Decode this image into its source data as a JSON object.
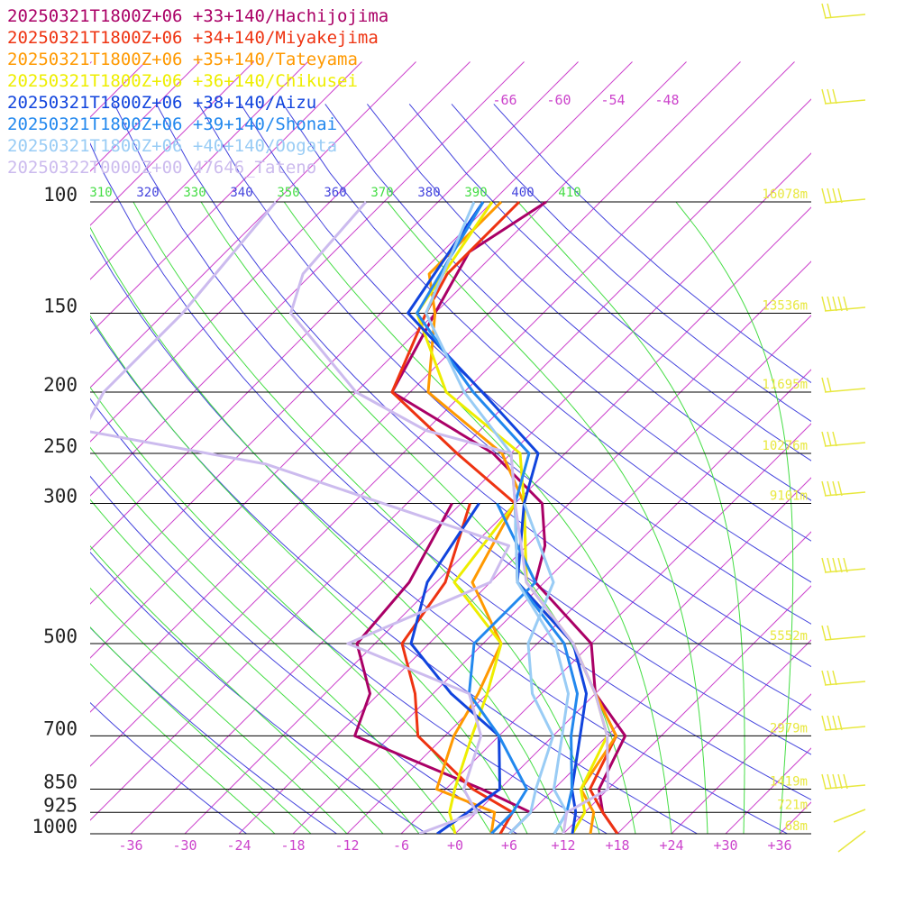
{
  "chart_data": {
    "type": "line",
    "title": "",
    "xlabel": "",
    "ylabel": "",
    "diagram": "skew-T log-P",
    "pressure_levels": [
      100,
      150,
      200,
      250,
      300,
      500,
      700,
      850,
      925,
      1000
    ],
    "temperature_ticks": [
      "-36",
      "-30",
      "-24",
      "-18",
      "-12",
      "-6",
      "+0",
      "+6",
      "+12",
      "+18",
      "+24",
      "+30",
      "+36"
    ],
    "upper_temperature_labels": [
      "-66",
      "-60",
      "-54",
      "-48"
    ],
    "theta_labels": [
      "310",
      "320",
      "330",
      "340",
      "350",
      "360",
      "370",
      "380",
      "390",
      "400",
      "410"
    ],
    "height_labels": [
      {
        "p": 100,
        "text": "16078m"
      },
      {
        "p": 150,
        "text": "13536m"
      },
      {
        "p": 200,
        "text": "11695m"
      },
      {
        "p": 250,
        "text": "10276m"
      },
      {
        "p": 300,
        "text": "9101m"
      },
      {
        "p": 500,
        "text": "5552m"
      },
      {
        "p": 700,
        "text": "2979m"
      },
      {
        "p": 850,
        "text": "1419m"
      },
      {
        "p": 925,
        "text": "721m"
      },
      {
        "p": 1000,
        "text": "68m"
      }
    ],
    "colors": {
      "isotherm": "#cc44cc",
      "isobar": "#000000",
      "dry_adiabat": "#4444dd",
      "moist_adiabat": "#44dd44",
      "height_label": "#e8e840",
      "wind_barb": "#e8e840"
    },
    "series": [
      {
        "name": "20250321T1800Z+06 +33+140/Hachijojima",
        "color": "#aa0066",
        "temperature": [
          [
            100,
            -60
          ],
          [
            120,
            -63
          ],
          [
            150,
            -60
          ],
          [
            200,
            -56
          ],
          [
            250,
            -38
          ],
          [
            300,
            -27
          ],
          [
            350,
            -22
          ],
          [
            400,
            -19
          ],
          [
            500,
            -6
          ],
          [
            600,
            0
          ],
          [
            700,
            8
          ],
          [
            850,
            11
          ],
          [
            925,
            14
          ],
          [
            1000,
            18
          ]
        ],
        "dewpoint": [
          [
            300,
            -37
          ],
          [
            400,
            -33
          ],
          [
            500,
            -32
          ],
          [
            600,
            -25
          ],
          [
            700,
            -22
          ],
          [
            850,
            -2
          ],
          [
            925,
            6
          ],
          [
            1000,
            6
          ]
        ]
      },
      {
        "name": "20250321T1800Z+06 +34+140/Miyakejima",
        "color": "#ee3311",
        "temperature": [
          [
            100,
            -63
          ],
          [
            130,
            -63
          ],
          [
            150,
            -61
          ],
          [
            200,
            -56
          ],
          [
            250,
            -42
          ],
          [
            300,
            -30
          ],
          [
            400,
            -21
          ],
          [
            500,
            -8
          ],
          [
            600,
            0
          ],
          [
            700,
            7
          ],
          [
            850,
            10
          ],
          [
            925,
            14
          ],
          [
            1000,
            18
          ]
        ],
        "dewpoint": [
          [
            300,
            -35
          ],
          [
            400,
            -29
          ],
          [
            500,
            -27
          ],
          [
            600,
            -20
          ],
          [
            700,
            -15
          ],
          [
            850,
            -3
          ],
          [
            925,
            4
          ],
          [
            1000,
            5
          ]
        ]
      },
      {
        "name": "20250321T1800Z+06 +35+140/Tateyama",
        "color": "#ff9900",
        "temperature": [
          [
            100,
            -65
          ],
          [
            130,
            -65
          ],
          [
            150,
            -60
          ],
          [
            200,
            -52
          ],
          [
            250,
            -37
          ],
          [
            300,
            -29
          ],
          [
            400,
            -20
          ],
          [
            500,
            -8
          ],
          [
            600,
            0
          ],
          [
            700,
            7
          ],
          [
            850,
            9
          ],
          [
            925,
            13
          ],
          [
            1000,
            15
          ]
        ],
        "dewpoint": [
          [
            300,
            -30
          ],
          [
            400,
            -26
          ],
          [
            500,
            -16
          ],
          [
            600,
            -13
          ],
          [
            700,
            -11
          ],
          [
            850,
            -7
          ],
          [
            925,
            2
          ],
          [
            1000,
            4
          ]
        ]
      },
      {
        "name": "20250321T1800Z+06 +36+140/Chikusei",
        "color": "#eeee00",
        "temperature": [
          [
            100,
            -66
          ],
          [
            150,
            -62
          ],
          [
            200,
            -50
          ],
          [
            250,
            -35
          ],
          [
            300,
            -29
          ],
          [
            400,
            -20
          ],
          [
            500,
            -8
          ],
          [
            600,
            0
          ],
          [
            700,
            6
          ],
          [
            850,
            9
          ],
          [
            925,
            12
          ],
          [
            1000,
            13
          ]
        ],
        "dewpoint": [
          [
            300,
            -30
          ],
          [
            400,
            -28
          ],
          [
            500,
            -16
          ],
          [
            600,
            -12
          ],
          [
            700,
            -9
          ],
          [
            850,
            -5
          ],
          [
            925,
            -3
          ],
          [
            1000,
            0
          ]
        ]
      },
      {
        "name": "20250321T1800Z+06 +38+140/Aizu",
        "color": "#1144dd",
        "temperature": [
          [
            100,
            -67
          ],
          [
            150,
            -63
          ],
          [
            200,
            -46
          ],
          [
            250,
            -33
          ],
          [
            300,
            -29
          ],
          [
            400,
            -21
          ],
          [
            500,
            -8
          ],
          [
            600,
            -1
          ],
          [
            700,
            3
          ],
          [
            850,
            8
          ],
          [
            925,
            11
          ],
          [
            1000,
            13
          ]
        ],
        "dewpoint": [
          [
            300,
            -34
          ],
          [
            400,
            -31
          ],
          [
            500,
            -26
          ],
          [
            600,
            -16
          ],
          [
            700,
            -6
          ],
          [
            850,
            0
          ],
          [
            925,
            -1
          ],
          [
            1000,
            -2
          ]
        ]
      },
      {
        "name": "20250321T1800Z+06 +39+140/Shonai",
        "color": "#2288ee",
        "temperature": [
          [
            100,
            -67
          ],
          [
            150,
            -62
          ],
          [
            200,
            -47
          ],
          [
            250,
            -34
          ],
          [
            300,
            -30
          ],
          [
            400,
            -21
          ],
          [
            500,
            -9
          ],
          [
            600,
            -2
          ],
          [
            700,
            2
          ],
          [
            850,
            8
          ],
          [
            925,
            10
          ],
          [
            1000,
            11
          ]
        ],
        "dewpoint": [
          [
            300,
            -32
          ],
          [
            400,
            -19
          ],
          [
            500,
            -19
          ],
          [
            600,
            -14
          ],
          [
            700,
            -6
          ],
          [
            850,
            3
          ],
          [
            925,
            4
          ],
          [
            1000,
            4
          ]
        ]
      },
      {
        "name": "20250321T1800Z+06 +40+140/Oogata",
        "color": "#99ccf5",
        "temperature": [
          [
            100,
            -68
          ],
          [
            150,
            -61
          ],
          [
            200,
            -48
          ],
          [
            250,
            -36
          ],
          [
            300,
            -30
          ],
          [
            400,
            -21
          ],
          [
            500,
            -10
          ],
          [
            600,
            -3
          ],
          [
            700,
            1
          ],
          [
            850,
            6
          ],
          [
            925,
            10
          ],
          [
            1000,
            11
          ]
        ],
        "dewpoint": [
          [
            300,
            -29
          ],
          [
            400,
            -17
          ],
          [
            500,
            -13
          ],
          [
            600,
            -7
          ],
          [
            700,
            0
          ],
          [
            850,
            4
          ],
          [
            925,
            6
          ],
          [
            1000,
            6
          ]
        ]
      },
      {
        "name": "20250322T0000Z+00 47646_Tateno",
        "color": "#ccbbee",
        "temperature": [
          [
            100,
            -80
          ],
          [
            130,
            -79
          ],
          [
            150,
            -76
          ],
          [
            200,
            -60
          ],
          [
            230,
            -48
          ],
          [
            250,
            -36
          ],
          [
            300,
            -30
          ],
          [
            400,
            -20
          ],
          [
            500,
            -8
          ],
          [
            600,
            0
          ],
          [
            700,
            6
          ],
          [
            850,
            12
          ],
          [
            925,
            10
          ],
          [
            1000,
            12
          ]
        ],
        "dewpoint": [
          [
            100,
            -90
          ],
          [
            150,
            -88
          ],
          [
            200,
            -88
          ],
          [
            230,
            -86
          ],
          [
            260,
            -62
          ],
          [
            350,
            -26
          ],
          [
            400,
            -24
          ],
          [
            500,
            -33
          ],
          [
            600,
            -14
          ],
          [
            700,
            -8
          ],
          [
            850,
            -4
          ],
          [
            925,
            0
          ],
          [
            1000,
            -4
          ]
        ]
      }
    ]
  }
}
